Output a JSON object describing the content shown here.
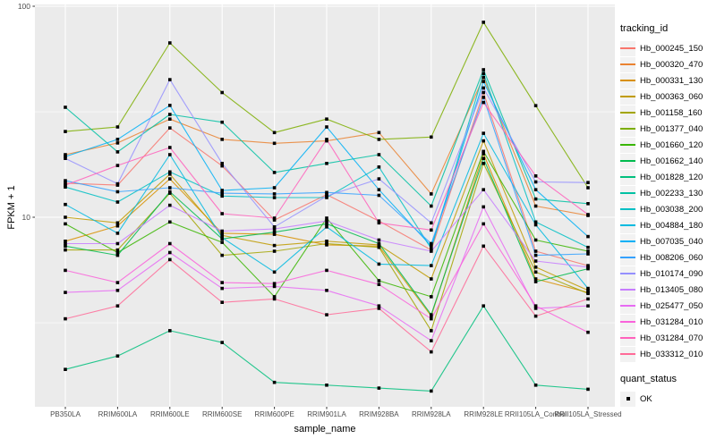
{
  "style": {
    "panel_bg": "#EBEBEB",
    "grid_color": "#FFFFFF",
    "tick_color": "#333333",
    "tick_label_color": "#4D4D4D",
    "point_color": "#000000",
    "legend_key_bg": "#F2F2F2"
  },
  "legend": {
    "tracking_title": "tracking_id",
    "quant_title": "quant_status",
    "quant_label": "OK"
  },
  "chart_data": {
    "type": "line",
    "title": "",
    "xlabel": "sample_name",
    "ylabel": "FPKM + 1",
    "y_scale": "log10",
    "ylim": [
      1.26,
      97
    ],
    "y_major_ticks": [
      100,
      10
    ],
    "y_minor_gridlines": [
      31.6,
      3.16
    ],
    "legend_position": "right",
    "point_marker": "black-square",
    "grid": "on",
    "categories": [
      "PB350LA",
      "RRIM600LA",
      "RRIM600LE",
      "RRIM600SE",
      "RRIM600PE",
      "RRIM901LA",
      "RRIM928BA",
      "RRIM928LA",
      "RRIM928LE",
      "RRII105LA_Control",
      "RRII105LA_Stressed"
    ],
    "series": [
      {
        "name": "Hb_000245_150",
        "color": "#F8766D",
        "values": [
          14.5,
          14.2,
          26.5,
          17.5,
          9.7,
          12.8,
          9.6,
          7.0,
          39,
          6.9,
          5.9
        ]
      },
      {
        "name": "Hb_000320_470",
        "color": "#EA8331",
        "values": [
          19.8,
          22.5,
          29.2,
          23.4,
          22.4,
          23.0,
          25.2,
          12.9,
          46,
          11.3,
          10.2
        ]
      },
      {
        "name": "Hb_000331_130",
        "color": "#D89000",
        "values": [
          7.7,
          9.1,
          15.2,
          8.4,
          8.3,
          7.4,
          7.3,
          3.4,
          20,
          5.1,
          4.4
        ]
      },
      {
        "name": "Hb_000363_060",
        "color": "#C09B00",
        "values": [
          10.0,
          9.4,
          16.0,
          8.2,
          7.35,
          7.7,
          7.4,
          5.1,
          23,
          5.8,
          4.5
        ]
      },
      {
        "name": "Hb_001158_160",
        "color": "#A3A500",
        "values": [
          7.0,
          7.0,
          13.0,
          6.6,
          6.9,
          7.5,
          7.2,
          2.9,
          18,
          5.5,
          4.35
        ]
      },
      {
        "name": "Hb_001377_040",
        "color": "#7CAE00",
        "values": [
          25.5,
          26.8,
          67,
          39,
          25.2,
          29.2,
          23.4,
          24,
          84,
          33.8,
          13.8
        ]
      },
      {
        "name": "Hb_001660_120",
        "color": "#39B600",
        "values": [
          9.3,
          6.8,
          9.5,
          7.6,
          4.2,
          9.9,
          5.0,
          4.2,
          20.5,
          7.8,
          6.9
        ]
      },
      {
        "name": "Hb_001662_140",
        "color": "#00BB4E",
        "values": [
          7.3,
          6.6,
          13.2,
          7.9,
          8.5,
          9.3,
          7.5,
          3.45,
          19,
          4.95,
          5.7
        ]
      },
      {
        "name": "Hb_001828_120",
        "color": "#00BF7D",
        "values": [
          1.9,
          2.2,
          2.9,
          2.55,
          1.65,
          1.6,
          1.55,
          1.5,
          3.8,
          1.6,
          1.53
        ]
      },
      {
        "name": "Hb_002233_130",
        "color": "#00C1A3",
        "values": [
          33.2,
          20.4,
          30.7,
          28.2,
          16.3,
          18.0,
          19.8,
          11.3,
          50,
          12.2,
          11.6
        ]
      },
      {
        "name": "Hb_003038_200",
        "color": "#00BFC4",
        "values": [
          13.9,
          11.8,
          16.4,
          12.6,
          12.4,
          12.4,
          17.3,
          7.1,
          48,
          9.5,
          7.2
        ]
      },
      {
        "name": "Hb_004884_180",
        "color": "#00BAE0",
        "values": [
          11.5,
          8.4,
          19.8,
          8.0,
          5.5,
          9.0,
          6.0,
          5.9,
          25,
          9.2,
          4.6
        ]
      },
      {
        "name": "Hb_007035_040",
        "color": "#00B0F6",
        "values": [
          19.4,
          23.4,
          33.9,
          13.4,
          13.8,
          26.8,
          13.5,
          7.3,
          44,
          13.5,
          8.1
        ]
      },
      {
        "name": "Hb_008206_060",
        "color": "#35A2FF",
        "values": [
          14.9,
          13.2,
          13.8,
          13.0,
          12.9,
          13.1,
          12.7,
          7.5,
          37,
          6.6,
          6.7
        ]
      },
      {
        "name": "Hb_010174_090",
        "color": "#9590FF",
        "values": [
          19.0,
          14.4,
          44.9,
          18.0,
          9.0,
          12.6,
          15.2,
          9.4,
          41,
          14.7,
          14.6
        ]
      },
      {
        "name": "Hb_013405_080",
        "color": "#C77CFF",
        "values": [
          7.5,
          7.5,
          11.4,
          8.6,
          8.8,
          9.6,
          7.8,
          6.9,
          13.5,
          6.2,
          5.8
        ]
      },
      {
        "name": "Hb_025477_050",
        "color": "#E76BF3",
        "values": [
          4.4,
          4.5,
          6.8,
          4.6,
          4.7,
          4.5,
          3.8,
          2.6,
          11.2,
          3.7,
          3.8
        ]
      },
      {
        "name": "Hb_031284_010",
        "color": "#FA62DB",
        "values": [
          5.6,
          4.9,
          7.5,
          4.9,
          4.85,
          5.6,
          4.8,
          3.3,
          9.3,
          3.8,
          2.85
        ]
      },
      {
        "name": "Hb_031284_070",
        "color": "#FF62BC",
        "values": [
          14.2,
          17.6,
          21.4,
          10.4,
          9.9,
          23.4,
          9.4,
          8.7,
          35,
          15.7,
          10.3
        ]
      },
      {
        "name": "Hb_033312_010",
        "color": "#FF6A98",
        "values": [
          3.3,
          3.8,
          6.3,
          3.95,
          4.1,
          3.45,
          3.7,
          2.3,
          7.3,
          3.4,
          4.1
        ]
      }
    ]
  }
}
